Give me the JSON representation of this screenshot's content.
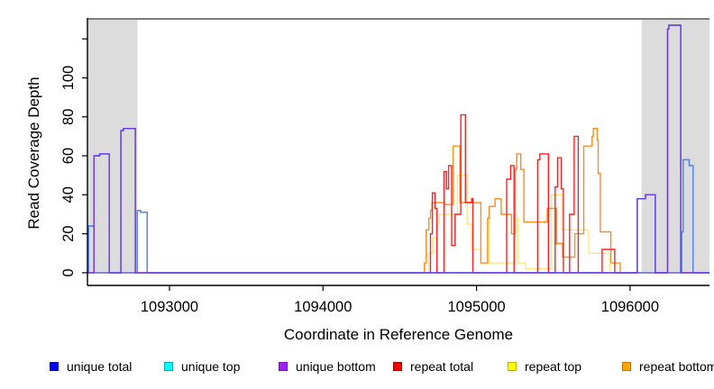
{
  "axes": {
    "x_label": "Coordinate in Reference Genome",
    "y_label": "Read Coverage Depth"
  },
  "legend": {
    "items": [
      {
        "label": "unique total",
        "fill": "#0000ff",
        "border": "#0000bb"
      },
      {
        "label": "unique top",
        "fill": "#00ffff",
        "border": "#00a8b0"
      },
      {
        "label": "unique bottom",
        "fill": "#a020f0",
        "border": "#7a10c0"
      },
      {
        "label": "repeat total",
        "fill": "#ee0000",
        "border": "#aa0000"
      },
      {
        "label": "repeat top",
        "fill": "#ffff00",
        "border": "#c0b000"
      },
      {
        "label": "repeat bottom",
        "fill": "#ffa500",
        "border": "#c07800"
      }
    ]
  },
  "chart_data": {
    "type": "line",
    "step": true,
    "title": "",
    "xlabel": "Coordinate in Reference Genome",
    "ylabel": "Read Coverage Depth",
    "xlim": [
      1092466,
      1096517
    ],
    "ylim": [
      -6.5,
      130.7
    ],
    "grid": false,
    "legend_position": "bottom",
    "x_ticks": [
      1093000,
      1094000,
      1095000,
      1096000
    ],
    "x_tick_labels": [
      "1093000",
      "1094000",
      "1095000",
      "1096000"
    ],
    "y_ticks": [
      0,
      20,
      40,
      60,
      80,
      100,
      120
    ],
    "y_tick_labels": [
      "0",
      "20",
      "40",
      "60",
      "80",
      "100",
      ""
    ],
    "band_color": "#dcdcdc",
    "shaded_regions": [
      {
        "x0": 1092466,
        "x1": 1092792
      },
      {
        "x0": 1096075,
        "x1": 1096517
      }
    ],
    "draw_order": [
      4,
      5,
      3,
      0,
      1,
      2
    ],
    "series": [
      {
        "name": "unique total",
        "line_color": "#4f86f0",
        "points": [
          [
            1092473,
            24
          ],
          [
            1092509,
            60
          ],
          [
            1092545,
            61
          ],
          [
            1092608,
            0
          ],
          [
            1092684,
            73
          ],
          [
            1092700,
            74
          ],
          [
            1092778,
            0
          ],
          [
            1092790,
            32
          ],
          [
            1092812,
            31
          ],
          [
            1092855,
            0
          ],
          [
            1096047,
            38
          ],
          [
            1096100,
            40
          ],
          [
            1096164,
            0
          ],
          [
            1096244,
            125
          ],
          [
            1096252,
            127
          ],
          [
            1096330,
            0
          ],
          [
            1096335,
            21
          ],
          [
            1096345,
            58
          ],
          [
            1096385,
            55
          ],
          [
            1096410,
            0
          ]
        ]
      },
      {
        "name": "unique top",
        "line_color": "#4f86f0",
        "points": [
          [
            1092473,
            24
          ],
          [
            1092509,
            0
          ],
          [
            1092790,
            32
          ],
          [
            1092812,
            31
          ],
          [
            1092855,
            0
          ],
          [
            1096335,
            21
          ],
          [
            1096345,
            58
          ],
          [
            1096385,
            55
          ],
          [
            1096410,
            0
          ]
        ]
      },
      {
        "name": "unique bottom",
        "line_color": "#6a3ae8",
        "points": [
          [
            1092509,
            60
          ],
          [
            1092545,
            61
          ],
          [
            1092608,
            0
          ],
          [
            1092684,
            73
          ],
          [
            1092700,
            74
          ],
          [
            1092778,
            0
          ],
          [
            1096047,
            38
          ],
          [
            1096100,
            40
          ],
          [
            1096164,
            0
          ],
          [
            1096244,
            125
          ],
          [
            1096252,
            127
          ],
          [
            1096330,
            0
          ]
        ]
      },
      {
        "name": "repeat total",
        "line_color": "#ff2020",
        "points": [
          [
            1094700,
            20
          ],
          [
            1094712,
            41
          ],
          [
            1094730,
            33
          ],
          [
            1094742,
            0
          ],
          [
            1094788,
            52
          ],
          [
            1094804,
            43
          ],
          [
            1094818,
            55
          ],
          [
            1094838,
            14
          ],
          [
            1094860,
            30
          ],
          [
            1094898,
            81
          ],
          [
            1094928,
            36
          ],
          [
            1094968,
            38
          ],
          [
            1094976,
            0
          ],
          [
            1095196,
            48
          ],
          [
            1095222,
            55
          ],
          [
            1095244,
            0
          ],
          [
            1095398,
            58
          ],
          [
            1095412,
            61
          ],
          [
            1095468,
            0
          ],
          [
            1095512,
            44
          ],
          [
            1095528,
            59
          ],
          [
            1095552,
            43
          ],
          [
            1095566,
            0
          ],
          [
            1095606,
            30
          ],
          [
            1095636,
            70
          ],
          [
            1095662,
            0
          ],
          [
            1095818,
            12
          ],
          [
            1095900,
            0
          ]
        ]
      },
      {
        "name": "repeat top",
        "line_color": "#ffe680",
        "points": [
          [
            1094688,
            10
          ],
          [
            1094716,
            18
          ],
          [
            1094738,
            25
          ],
          [
            1094758,
            30
          ],
          [
            1094876,
            50
          ],
          [
            1094938,
            25
          ],
          [
            1094968,
            12
          ],
          [
            1095028,
            5
          ],
          [
            1095070,
            28
          ],
          [
            1095082,
            5
          ],
          [
            1095250,
            28
          ],
          [
            1095268,
            5
          ],
          [
            1095320,
            2
          ],
          [
            1095488,
            40
          ],
          [
            1095556,
            22
          ],
          [
            1095640,
            22
          ],
          [
            1095730,
            10
          ],
          [
            1095868,
            0
          ]
        ]
      },
      {
        "name": "repeat bottom",
        "line_color": "#ff8c1e",
        "points": [
          [
            1094660,
            5
          ],
          [
            1094672,
            22
          ],
          [
            1094690,
            28
          ],
          [
            1094700,
            32
          ],
          [
            1094710,
            36
          ],
          [
            1094790,
            35
          ],
          [
            1094848,
            65
          ],
          [
            1094892,
            36
          ],
          [
            1095028,
            5
          ],
          [
            1095072,
            28
          ],
          [
            1095082,
            34
          ],
          [
            1095120,
            38
          ],
          [
            1095160,
            30
          ],
          [
            1095228,
            20
          ],
          [
            1095252,
            53
          ],
          [
            1095262,
            61
          ],
          [
            1095288,
            53
          ],
          [
            1095308,
            26
          ],
          [
            1095460,
            33
          ],
          [
            1095520,
            15
          ],
          [
            1095560,
            8
          ],
          [
            1095640,
            20
          ],
          [
            1095698,
            65
          ],
          [
            1095752,
            70
          ],
          [
            1095760,
            74
          ],
          [
            1095786,
            68
          ],
          [
            1095792,
            51
          ],
          [
            1095806,
            21
          ],
          [
            1095875,
            5
          ],
          [
            1095935,
            0
          ]
        ]
      }
    ]
  }
}
